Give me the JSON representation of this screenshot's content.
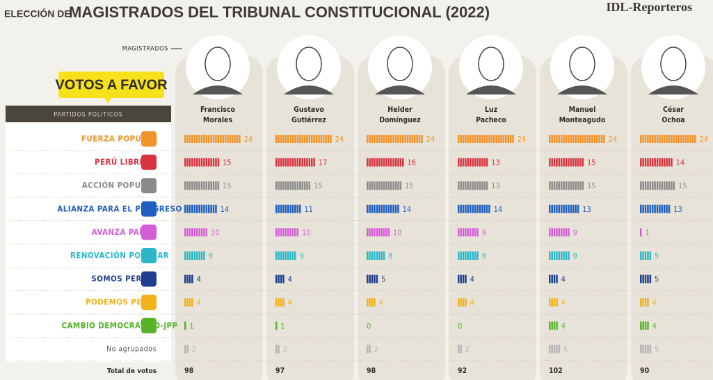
{
  "title_prefix": "ELECCIÓN DE",
  "title": "MAGISTRADOS DEL TRIBUNAL CONSTITUCIONAL (2022)",
  "brand": "IDL-Reporteros",
  "magistrates_label": "MAGISTRADOS",
  "badge": "VOTOS A FAVOR",
  "parties_header": "PARTIDOS POLÍTICOS",
  "total_label": "Total de votos",
  "parties": [
    {
      "name": "FUERZA POPULAR",
      "color": "#f39226"
    },
    {
      "name": "PERÚ LIBRE",
      "color": "#d9333f"
    },
    {
      "name": "ACCIÓN POPULAR",
      "color": "#8a8a8a"
    },
    {
      "name": "ALIANZA PARA EL PROGRESO",
      "color": "#1f5fbf"
    },
    {
      "name": "AVANZA PAÍS",
      "color": "#d35fd6"
    },
    {
      "name": "RENOVACIÓN POPULAR",
      "color": "#2cb7c8"
    },
    {
      "name": "SOMOS PERÚ",
      "color": "#1e3f8f"
    },
    {
      "name": "PODEMOS PERÚ",
      "color": "#f2b21b"
    },
    {
      "name": "CAMBIO DEMOCRÁTICO-JPP",
      "color": "#58b22a"
    },
    {
      "name": "No agrupados",
      "color": "#b5b5b5"
    }
  ],
  "magistrates": [
    {
      "name": [
        "Francisco",
        "Morales"
      ],
      "values": [
        24,
        15,
        15,
        14,
        10,
        9,
        4,
        4,
        1,
        2
      ],
      "total": 98
    },
    {
      "name": [
        "Gustavo",
        "Gutiérrez"
      ],
      "values": [
        24,
        17,
        15,
        11,
        10,
        9,
        4,
        4,
        1,
        2
      ],
      "total": 97
    },
    {
      "name": [
        "Helder",
        "Domínguez"
      ],
      "values": [
        24,
        16,
        15,
        14,
        10,
        8,
        5,
        4,
        0,
        2
      ],
      "total": 98
    },
    {
      "name": [
        "Luz",
        "Pacheco"
      ],
      "values": [
        24,
        13,
        13,
        14,
        9,
        9,
        4,
        4,
        0,
        2
      ],
      "total": 92
    },
    {
      "name": [
        "Manuel",
        "Monteagudo"
      ],
      "values": [
        24,
        15,
        15,
        13,
        9,
        9,
        4,
        4,
        4,
        5
      ],
      "total": 102
    },
    {
      "name": [
        "César",
        "Ochoa"
      ],
      "values": [
        24,
        14,
        15,
        13,
        1,
        5,
        5,
        4,
        4,
        5
      ],
      "total": 90
    }
  ]
}
